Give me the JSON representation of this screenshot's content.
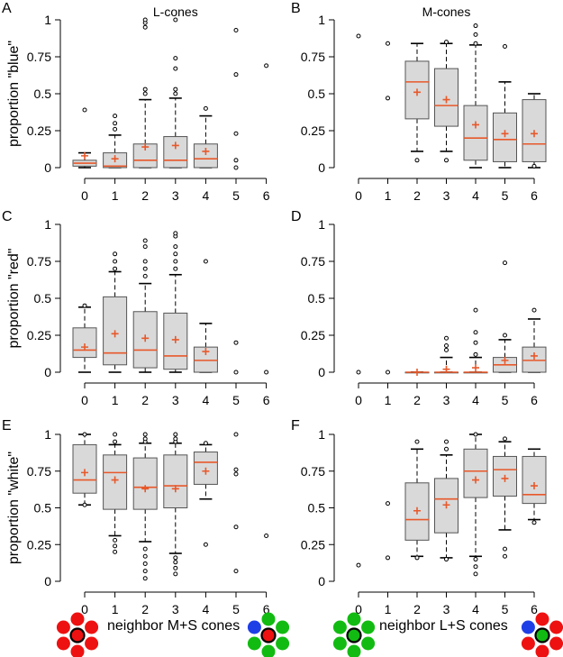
{
  "colors": {
    "box_fill": "#d9d9d9",
    "median": "#e8582a",
    "mean": "#e8582a",
    "red_cone": "#ee1111",
    "green_cone": "#12bb12",
    "blue_cone": "#1f3fe6"
  },
  "captions": {
    "left": "neighbor M+S cones",
    "right": "neighbor L+S cones"
  },
  "chart_data": [
    {
      "type": "box",
      "panel": "A",
      "title": "L-cones",
      "ylabel": "proportion \"blue\"",
      "xticks": [
        "0",
        "1",
        "2",
        "3",
        "4",
        "5",
        "6"
      ],
      "yticks": [
        "0",
        "0.25",
        "0.5",
        "0.75",
        "1"
      ],
      "ylim": [
        0,
        1
      ],
      "boxes": [
        {
          "x": 0,
          "q1": 0.01,
          "median": 0.03,
          "q3": 0.05,
          "lw": 0,
          "uw": 0.1,
          "mean": 0.08,
          "outliers": [
            0.39
          ]
        },
        {
          "x": 1,
          "q1": 0,
          "median": 0.01,
          "q3": 0.1,
          "lw": 0,
          "uw": 0.22,
          "mean": 0.06,
          "outliers": [
            0.26,
            0.3,
            0.35
          ]
        },
        {
          "x": 2,
          "q1": 0,
          "median": 0.05,
          "q3": 0.16,
          "lw": 0,
          "uw": 0.46,
          "mean": 0.14,
          "outliers": [
            0.5,
            0.53,
            0.95,
            0.98,
            1.0
          ]
        },
        {
          "x": 3,
          "q1": 0,
          "median": 0.05,
          "q3": 0.21,
          "lw": 0,
          "uw": 0.47,
          "mean": 0.15,
          "outliers": [
            0.5,
            0.53,
            0.67,
            0.74,
            1.0
          ]
        },
        {
          "x": 4,
          "q1": 0,
          "median": 0.06,
          "q3": 0.16,
          "lw": 0,
          "uw": 0.35,
          "mean": 0.11,
          "outliers": [
            0.4
          ]
        },
        {
          "x": 5,
          "outliers": [
            0,
            0.05,
            0.23,
            0.63,
            0.93
          ]
        },
        {
          "x": 6,
          "outliers": [
            0.69
          ]
        }
      ]
    },
    {
      "type": "box",
      "panel": "B",
      "title": "M-cones",
      "ylabel": "",
      "xticks": [
        "0",
        "1",
        "2",
        "3",
        "4",
        "5",
        "6"
      ],
      "yticks": [
        "0",
        "0.25",
        "0.5",
        "0.75",
        "1"
      ],
      "ylim": [
        0,
        1
      ],
      "boxes": [
        {
          "x": 0,
          "outliers": [
            0.89
          ]
        },
        {
          "x": 1,
          "outliers": [
            0.47,
            0.84
          ]
        },
        {
          "x": 2,
          "q1": 0.33,
          "median": 0.58,
          "q3": 0.72,
          "lw": 0.11,
          "uw": 0.84,
          "mean": 0.51,
          "outliers": [
            0.05
          ]
        },
        {
          "x": 3,
          "q1": 0.28,
          "median": 0.42,
          "q3": 0.67,
          "lw": 0.11,
          "uw": 0.84,
          "mean": 0.46,
          "outliers": [
            0.05,
            0.85
          ]
        },
        {
          "x": 4,
          "q1": 0.05,
          "median": 0.2,
          "q3": 0.42,
          "lw": 0,
          "uw": 0.83,
          "mean": 0.29,
          "outliers": [
            0.84,
            0.9,
            0.96
          ]
        },
        {
          "x": 5,
          "q1": 0.04,
          "median": 0.19,
          "q3": 0.37,
          "lw": 0,
          "uw": 0.58,
          "mean": 0.23,
          "outliers": [
            0.82
          ]
        },
        {
          "x": 6,
          "q1": 0.04,
          "median": 0.16,
          "q3": 0.46,
          "lw": 0,
          "uw": 0.5,
          "mean": 0.23,
          "outliers": [
            0.01
          ]
        }
      ]
    },
    {
      "type": "box",
      "panel": "C",
      "title": "",
      "ylabel": "proportion \"red\"",
      "xticks": [
        "0",
        "1",
        "2",
        "3",
        "4",
        "5",
        "6"
      ],
      "yticks": [
        "0",
        "0.25",
        "0.5",
        "0.75",
        "1"
      ],
      "ylim": [
        0,
        1
      ],
      "boxes": [
        {
          "x": 0,
          "q1": 0.1,
          "median": 0.15,
          "q3": 0.3,
          "lw": 0,
          "uw": 0.44,
          "mean": 0.17,
          "outliers": [
            0.45
          ]
        },
        {
          "x": 1,
          "q1": 0.05,
          "median": 0.13,
          "q3": 0.51,
          "lw": 0,
          "uw": 0.68,
          "mean": 0.26,
          "outliers": [
            0.7,
            0.75,
            0.8
          ]
        },
        {
          "x": 2,
          "q1": 0.03,
          "median": 0.15,
          "q3": 0.41,
          "lw": 0,
          "uw": 0.6,
          "mean": 0.23,
          "outliers": [
            0.65,
            0.7,
            0.75,
            0.85,
            0.89
          ]
        },
        {
          "x": 3,
          "q1": 0.02,
          "median": 0.11,
          "q3": 0.4,
          "lw": 0,
          "uw": 0.66,
          "mean": 0.22,
          "outliers": [
            0.7,
            0.75,
            0.8,
            0.85,
            0.92,
            0.94
          ]
        },
        {
          "x": 4,
          "q1": 0,
          "median": 0.08,
          "q3": 0.17,
          "lw": 0,
          "uw": 0.33,
          "mean": 0.14,
          "outliers": [
            0.75
          ]
        },
        {
          "x": 5,
          "outliers": [
            0,
            0.2
          ]
        },
        {
          "x": 6,
          "outliers": [
            0
          ]
        }
      ]
    },
    {
      "type": "box",
      "panel": "D",
      "title": "",
      "ylabel": "",
      "xticks": [
        "0",
        "1",
        "2",
        "3",
        "4",
        "5",
        "6"
      ],
      "yticks": [
        "0",
        "0.25",
        "0.5",
        "0.75",
        "1"
      ],
      "ylim": [
        0,
        1
      ],
      "boxes": [
        {
          "x": 0,
          "outliers": [
            0
          ]
        },
        {
          "x": 1,
          "outliers": [
            0
          ]
        },
        {
          "x": 2,
          "q1": 0,
          "median": 0,
          "q3": 0,
          "lw": 0,
          "uw": 0,
          "mean": 0,
          "outliers": []
        },
        {
          "x": 3,
          "q1": 0,
          "median": 0,
          "q3": 0,
          "lw": 0,
          "uw": 0.1,
          "mean": 0.02,
          "outliers": [
            0.15,
            0.18,
            0.23
          ]
        },
        {
          "x": 4,
          "q1": 0,
          "median": 0,
          "q3": 0,
          "lw": 0,
          "uw": 0.1,
          "mean": 0.03,
          "outliers": [
            0.12,
            0.2,
            0.27,
            0.42
          ]
        },
        {
          "x": 5,
          "q1": 0,
          "median": 0.05,
          "q3": 0.1,
          "lw": 0,
          "uw": 0.22,
          "mean": 0.08,
          "outliers": [
            0.25,
            0.74
          ]
        },
        {
          "x": 6,
          "q1": 0,
          "median": 0.08,
          "q3": 0.17,
          "lw": 0,
          "uw": 0.36,
          "mean": 0.11,
          "outliers": [
            0.42
          ]
        }
      ]
    },
    {
      "type": "box",
      "panel": "E",
      "title": "",
      "ylabel": "proportion \"white\"",
      "xticks": [
        "0",
        "1",
        "2",
        "3",
        "4",
        "5",
        "6"
      ],
      "yticks": [
        "0",
        "0.25",
        "0.5",
        "0.75",
        "1"
      ],
      "ylim": [
        0,
        1
      ],
      "boxes": [
        {
          "x": 0,
          "q1": 0.6,
          "median": 0.69,
          "q3": 0.93,
          "lw": 0.52,
          "uw": 1.0,
          "mean": 0.74,
          "outliers": [
            0.52,
            1.0
          ]
        },
        {
          "x": 1,
          "q1": 0.49,
          "median": 0.74,
          "q3": 0.86,
          "lw": 0.31,
          "uw": 0.93,
          "mean": 0.69,
          "outliers": [
            0.2,
            0.24,
            0.28,
            0.95,
            1.0
          ]
        },
        {
          "x": 2,
          "q1": 0.49,
          "median": 0.64,
          "q3": 0.84,
          "lw": 0.27,
          "uw": 0.94,
          "mean": 0.63,
          "outliers": [
            0.02,
            0.07,
            0.12,
            0.17,
            0.22,
            0.95,
            0.97,
            1.0
          ]
        },
        {
          "x": 3,
          "q1": 0.5,
          "median": 0.65,
          "q3": 0.86,
          "lw": 0.19,
          "uw": 0.94,
          "mean": 0.63,
          "outliers": [
            0.05,
            0.09,
            0.13,
            0.16,
            0.95,
            0.97,
            1.0
          ]
        },
        {
          "x": 4,
          "q1": 0.66,
          "median": 0.81,
          "q3": 0.88,
          "lw": 0.56,
          "uw": 0.93,
          "mean": 0.75,
          "outliers": [
            0.25,
            0.94
          ]
        },
        {
          "x": 5,
          "outliers": [
            0.07,
            0.37,
            0.73,
            0.76,
            1.0
          ]
        },
        {
          "x": 6,
          "outliers": [
            0.31
          ]
        }
      ]
    },
    {
      "type": "box",
      "panel": "F",
      "title": "",
      "ylabel": "",
      "xticks": [
        "0",
        "1",
        "2",
        "3",
        "4",
        "5",
        "6"
      ],
      "yticks": [
        "0",
        "0.25",
        "0.5",
        "0.75",
        "1"
      ],
      "ylim": [
        0,
        1
      ],
      "boxes": [
        {
          "x": 0,
          "outliers": [
            0.11
          ]
        },
        {
          "x": 1,
          "outliers": [
            0.16,
            0.53
          ]
        },
        {
          "x": 2,
          "q1": 0.28,
          "median": 0.42,
          "q3": 0.67,
          "lw": 0.17,
          "uw": 0.9,
          "mean": 0.48,
          "outliers": [
            0.16,
            0.95
          ]
        },
        {
          "x": 3,
          "q1": 0.33,
          "median": 0.56,
          "q3": 0.7,
          "lw": 0.16,
          "uw": 0.86,
          "mean": 0.52,
          "outliers": [
            0.15,
            0.9,
            0.95
          ]
        },
        {
          "x": 4,
          "q1": 0.57,
          "median": 0.75,
          "q3": 0.9,
          "lw": 0.17,
          "uw": 1.0,
          "mean": 0.69,
          "outliers": [
            0.05,
            0.1,
            0.15,
            1.0
          ]
        },
        {
          "x": 5,
          "q1": 0.58,
          "median": 0.76,
          "q3": 0.85,
          "lw": 0.35,
          "uw": 0.95,
          "mean": 0.7,
          "outliers": [
            0.17,
            0.22,
            0.97
          ]
        },
        {
          "x": 6,
          "q1": 0.53,
          "median": 0.59,
          "q3": 0.85,
          "lw": 0.42,
          "uw": 0.9,
          "mean": 0.65,
          "outliers": [
            0.4
          ]
        }
      ]
    }
  ]
}
